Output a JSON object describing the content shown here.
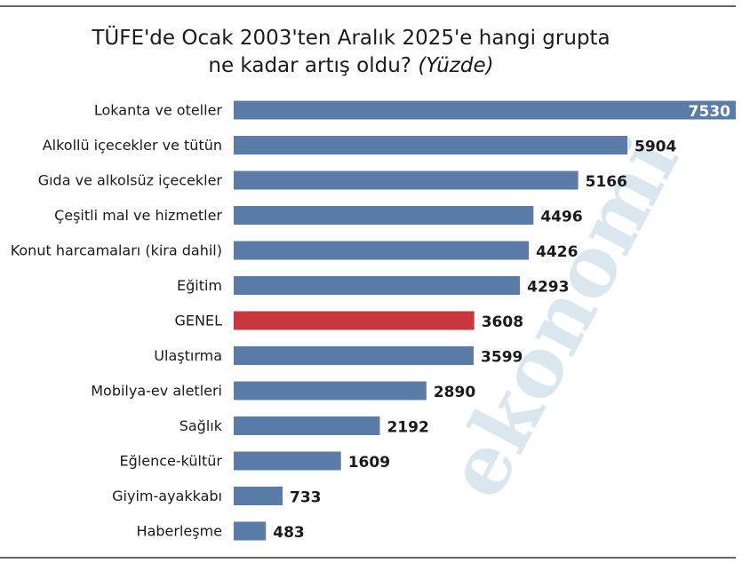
{
  "chart_data": {
    "type": "bar",
    "title": "TÜFE'de Ocak 2003'ten Aralık 2025'e hangi grupta ne kadar artış oldu?",
    "subtitle": "(Yüzde)",
    "watermark": "ekonomi",
    "categories": [
      "Lokanta ve oteller",
      "Alkollü içecekler ve tütün",
      "Gıda ve alkolsüz içecekler",
      "Çeşitli mal ve hizmetler",
      "Konut harcamaları (kira dahil)",
      "Eğitim",
      "GENEL",
      "Ulaştırma",
      "Mobilya-ev aletleri",
      "Sağlık",
      "Eğlence-kültür",
      "Giyim-ayakkabı",
      "Haberleşme"
    ],
    "values": [
      7530,
      5904,
      5166,
      4496,
      4426,
      4293,
      3608,
      3599,
      2890,
      2192,
      1609,
      733,
      483
    ],
    "colors": [
      "#5a7ca6",
      "#5a7ca6",
      "#5a7ca6",
      "#5a7ca6",
      "#5a7ca6",
      "#5a7ca6",
      "#c9363f",
      "#5a7ca6",
      "#5a7ca6",
      "#5a7ca6",
      "#5a7ca6",
      "#5a7ca6",
      "#5a7ca6"
    ]
  }
}
